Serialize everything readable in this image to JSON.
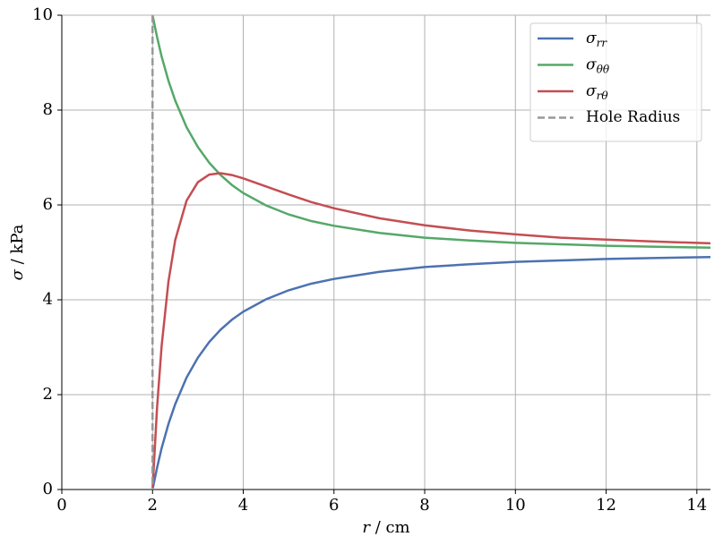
{
  "chart_data": {
    "type": "line",
    "xlabel": "r / cm",
    "ylabel": "σ / kPa",
    "x": [
      2,
      2.1,
      2.2,
      2.35,
      2.5,
      2.75,
      3,
      3.25,
      3.5,
      3.75,
      4,
      4.5,
      5,
      5.5,
      6,
      7,
      8,
      9,
      10,
      11,
      12,
      13,
      14.3
    ],
    "series": [
      {
        "name": "σrr",
        "color": "#4c72b0",
        "values": [
          0,
          0.46,
          0.87,
          1.38,
          1.8,
          2.36,
          2.78,
          3.11,
          3.37,
          3.58,
          3.75,
          4.01,
          4.2,
          4.34,
          4.44,
          4.59,
          4.69,
          4.75,
          4.8,
          4.83,
          4.86,
          4.88,
          4.9
        ]
      },
      {
        "name": "σθθ",
        "color": "#55a868",
        "values": [
          10,
          9.54,
          9.13,
          8.62,
          8.2,
          7.64,
          7.22,
          6.89,
          6.63,
          6.42,
          6.25,
          5.99,
          5.8,
          5.66,
          5.56,
          5.41,
          5.31,
          5.25,
          5.2,
          5.17,
          5.14,
          5.12,
          5.1
        ]
      },
      {
        "name": "σrθ",
        "color": "#c44e52",
        "values": [
          0,
          1.73,
          3.02,
          4.38,
          5.26,
          6.09,
          6.48,
          6.64,
          6.67,
          6.63,
          6.56,
          6.39,
          6.22,
          6.06,
          5.93,
          5.72,
          5.57,
          5.46,
          5.38,
          5.31,
          5.27,
          5.23,
          5.19
        ]
      }
    ],
    "vlines": [
      {
        "name": "Hole Radius",
        "color": "#999999",
        "x": 2,
        "ymin": 0,
        "ymax": 10
      }
    ],
    "xlim": [
      0,
      14.3
    ],
    "ylim": [
      0,
      10
    ],
    "xticks": [
      0,
      2,
      4,
      6,
      8,
      10,
      12,
      14
    ],
    "yticks": [
      0,
      2,
      4,
      6,
      8,
      10
    ],
    "grid": true,
    "legend": "upper right"
  }
}
